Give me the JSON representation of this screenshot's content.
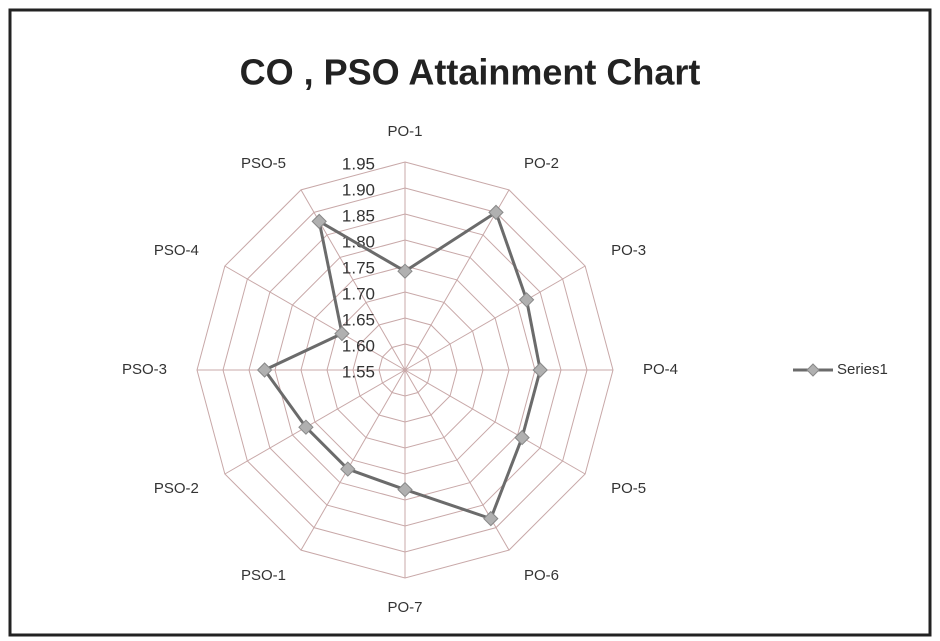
{
  "chart_data": {
    "type": "radar",
    "title": "CO , PSO Attainment Chart",
    "categories": [
      "PO-1",
      "PO-2",
      "PO-3",
      "PO-4",
      "PO-5",
      "PO-6",
      "PO-7",
      "PSO-1",
      "PSO-2",
      "PSO-3",
      "PSO-4",
      "PSO-5"
    ],
    "series": [
      {
        "name": "Series1",
        "color": "#6b6b6b",
        "values": [
          1.74,
          1.9,
          1.82,
          1.81,
          1.81,
          1.88,
          1.78,
          1.77,
          1.77,
          1.82,
          1.69,
          1.88
        ]
      }
    ],
    "rlim": [
      1.55,
      1.95
    ],
    "rticks": [
      1.55,
      {
        "value": 1.6,
        "label": "1.60"
      },
      1.65,
      {
        "value": 1.7,
        "label": "1.70"
      },
      1.75,
      {
        "value": 1.8,
        "label": "1.80"
      },
      1.85,
      {
        "value": 1.9,
        "label": "1.90"
      },
      1.95
    ],
    "grid": true,
    "legend": "right"
  }
}
